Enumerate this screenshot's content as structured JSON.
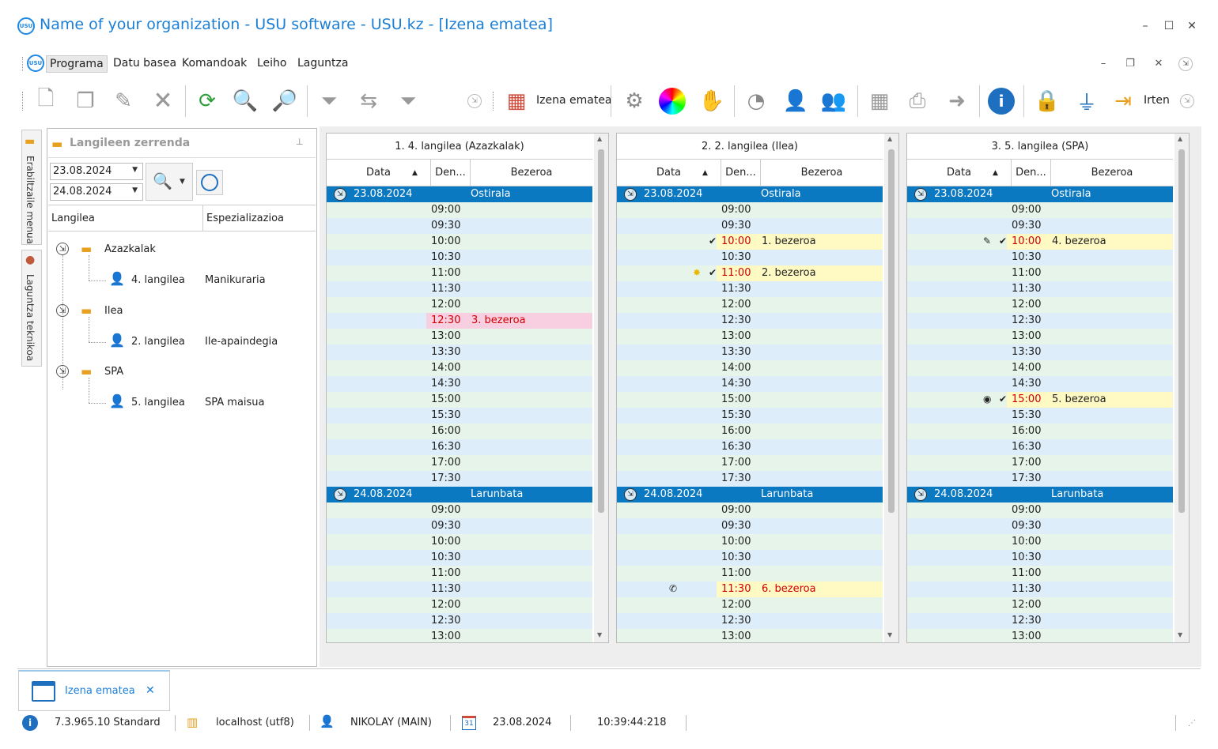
{
  "window": {
    "title": "Name of your organization - USU software - USU.kz - [Izena ematea]",
    "logo_text": "USU",
    "minimize": "–",
    "maximize": "☐",
    "close": "✕"
  },
  "menu": {
    "items": [
      "Programa",
      "Datu basea",
      "Komandoak",
      "Leiho",
      "Laguntza"
    ],
    "mdi_minimize": "–",
    "mdi_restore": "❐",
    "mdi_close": "✕"
  },
  "toolbar": {
    "schedule_label": "Izena ematea",
    "exit_label": "Irten"
  },
  "side_tabs": {
    "user_menu": "Erabiltzaile menua",
    "tech_support": "Laguntza teknikoa"
  },
  "employee_panel": {
    "title": "Langileen zerrenda",
    "date_from": "23.08.2024",
    "date_to": "24.08.2024",
    "col_employee": "Langilea",
    "col_specialization": "Espezializazioa",
    "groups": [
      {
        "name": "Azazkalak",
        "employee": "4. langilea",
        "specialization": "Manikuraria"
      },
      {
        "name": "Ilea",
        "employee": "2. langilea",
        "specialization": "Ile-apaindegia"
      },
      {
        "name": "SPA",
        "employee": "5. langilea",
        "specialization": "SPA maisua"
      }
    ]
  },
  "schedule": {
    "col_date": "Data",
    "col_duration": "Den...",
    "col_client": "Bezeroa",
    "day1": {
      "date": "23.08.2024",
      "name": "Ostirala"
    },
    "day2": {
      "date": "24.08.2024",
      "name": "Larunbata"
    },
    "times_day1": [
      "09:00",
      "09:30",
      "10:00",
      "10:30",
      "11:00",
      "11:30",
      "12:00",
      "12:30",
      "13:00",
      "13:30",
      "14:00",
      "14:30",
      "15:00",
      "15:30",
      "16:00",
      "16:30",
      "17:00",
      "17:30"
    ],
    "times_day2": [
      "09:00",
      "09:30",
      "10:00",
      "10:30",
      "11:00",
      "11:30",
      "12:00",
      "12:30",
      "13:00"
    ],
    "columns": [
      {
        "title": "1. 4. langilea (Azazkalak)",
        "bookings": [
          {
            "day": 1,
            "time": "12:30",
            "client": "3. bezeroa",
            "style": "pink",
            "marks": []
          }
        ]
      },
      {
        "title": "2. 2. langilea (Ilea)",
        "bookings": [
          {
            "day": 1,
            "time": "10:00",
            "client": "1. bezeroa",
            "style": "yellow",
            "marks": [
              "✔"
            ]
          },
          {
            "day": 1,
            "time": "11:00",
            "client": "2. bezeroa",
            "style": "yellow",
            "marks": [
              "✸",
              "✔"
            ]
          },
          {
            "day": 2,
            "time": "11:30",
            "client": "6. bezeroa",
            "style": "yellow",
            "marks": [
              "✆"
            ]
          }
        ]
      },
      {
        "title": "3. 5. langilea (SPA)",
        "bookings": [
          {
            "day": 1,
            "time": "10:00",
            "client": "4. bezeroa",
            "style": "yellow",
            "marks": [
              "✎",
              "✔"
            ]
          },
          {
            "day": 1,
            "time": "15:00",
            "client": "5. bezeroa",
            "style": "yellow",
            "marks": [
              "◉",
              "✔"
            ]
          }
        ]
      }
    ]
  },
  "doc_tab": {
    "label": "Izena ematea",
    "close": "✕"
  },
  "status": {
    "version": "7.3.965.10 Standard",
    "server": "localhost (utf8)",
    "user": "NIKOLAY (MAIN)",
    "calendar_day": "31",
    "date": "23.08.2024",
    "time": "10:39:44:218"
  },
  "colors": {
    "accent": "#1c7fd6",
    "day_header": "#0b78c2",
    "row_green": "#e6f4ea",
    "row_blue": "#ddeefa",
    "booking_yellow": "#fff9c4",
    "booking_pink": "#f8cfe0"
  }
}
